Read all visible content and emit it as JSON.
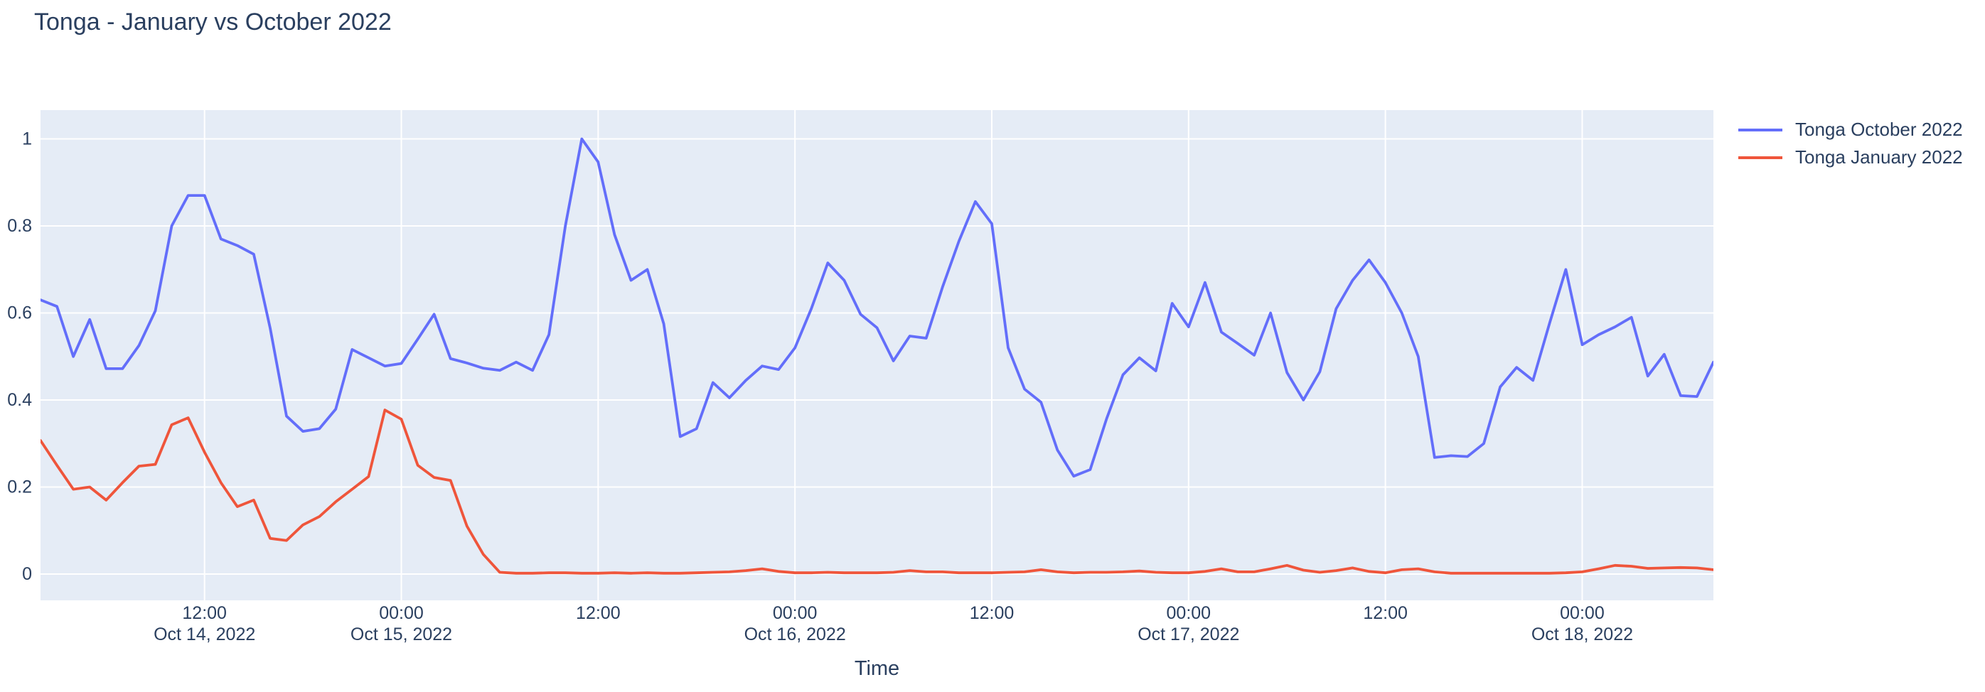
{
  "title": "Tonga - January vs October 2022",
  "colors": {
    "title_text": "#2a3f5f",
    "tick_text": "#2a3f5f",
    "plot_background": "#e5ecf6",
    "grid": "#ffffff",
    "page_background": "#ffffff",
    "series_october": "#636efa",
    "series_january": "#ef553b"
  },
  "chart_data": {
    "type": "line",
    "title": "Tonga - January vs October 2022",
    "xlabel": "Time",
    "ylabel": "",
    "grid": true,
    "legend_position": "right-top-outside",
    "ylim": [
      0,
      1
    ],
    "y_ticks": [
      {
        "value": 0.0,
        "label": "0"
      },
      {
        "value": 0.2,
        "label": "0.2"
      },
      {
        "value": 0.4,
        "label": "0.4"
      },
      {
        "value": 0.6,
        "label": "0.6"
      },
      {
        "value": 0.8,
        "label": "0.8"
      },
      {
        "value": 1.0,
        "label": "1"
      }
    ],
    "x_axis_note": "hourly samples from Oct 14 2022 02:00 to Oct 18 2022 08:00 (t = hours since first point)",
    "x_range_hours": [
      0,
      102
    ],
    "x_ticks": [
      {
        "t": 10,
        "time": "12:00",
        "date": "Oct 14, 2022"
      },
      {
        "t": 22,
        "time": "00:00",
        "date": "Oct 15, 2022"
      },
      {
        "t": 34,
        "time": "12:00",
        "date": ""
      },
      {
        "t": 46,
        "time": "00:00",
        "date": "Oct 16, 2022"
      },
      {
        "t": 58,
        "time": "12:00",
        "date": ""
      },
      {
        "t": 70,
        "time": "00:00",
        "date": "Oct 17, 2022"
      },
      {
        "t": 82,
        "time": "12:00",
        "date": ""
      },
      {
        "t": 94,
        "time": "00:00",
        "date": "Oct 18, 2022"
      }
    ],
    "series": [
      {
        "name": "Tonga October 2022",
        "color": "#636efa",
        "values": [
          0.63,
          0.615,
          0.5,
          0.585,
          0.472,
          0.472,
          0.525,
          0.605,
          0.8,
          0.87,
          0.87,
          0.77,
          0.755,
          0.735,
          0.565,
          0.363,
          0.328,
          0.334,
          0.379,
          0.516,
          0.497,
          0.478,
          0.484,
          0.54,
          0.597,
          0.495,
          0.485,
          0.473,
          0.468,
          0.487,
          0.468,
          0.55,
          0.8,
          1.0,
          0.947,
          0.78,
          0.675,
          0.7,
          0.575,
          0.316,
          0.334,
          0.44,
          0.405,
          0.445,
          0.478,
          0.47,
          0.52,
          0.61,
          0.715,
          0.675,
          0.597,
          0.566,
          0.49,
          0.547,
          0.542,
          0.66,
          0.765,
          0.856,
          0.805,
          0.52,
          0.425,
          0.395,
          0.285,
          0.225,
          0.24,
          0.357,
          0.458,
          0.497,
          0.467,
          0.622,
          0.568,
          0.67,
          0.556,
          0.53,
          0.503,
          0.6,
          0.463,
          0.4,
          0.465,
          0.61,
          0.675,
          0.722,
          0.67,
          0.6,
          0.5,
          0.268,
          0.272,
          0.27,
          0.3,
          0.43,
          0.475,
          0.445,
          0.575,
          0.7,
          0.527,
          0.55,
          0.568,
          0.59,
          0.455,
          0.505,
          0.41,
          0.408,
          0.487
        ]
      },
      {
        "name": "Tonga January 2022",
        "color": "#ef553b",
        "values": [
          0.307,
          0.25,
          0.195,
          0.2,
          0.17,
          0.21,
          0.248,
          0.252,
          0.343,
          0.359,
          0.28,
          0.21,
          0.155,
          0.17,
          0.082,
          0.077,
          0.113,
          0.132,
          0.166,
          0.195,
          0.224,
          0.377,
          0.356,
          0.25,
          0.222,
          0.215,
          0.11,
          0.045,
          0.004,
          0.002,
          0.002,
          0.003,
          0.003,
          0.002,
          0.002,
          0.003,
          0.002,
          0.003,
          0.002,
          0.002,
          0.003,
          0.004,
          0.005,
          0.008,
          0.012,
          0.006,
          0.003,
          0.003,
          0.004,
          0.003,
          0.003,
          0.003,
          0.004,
          0.008,
          0.005,
          0.005,
          0.003,
          0.003,
          0.003,
          0.004,
          0.005,
          0.01,
          0.005,
          0.003,
          0.004,
          0.004,
          0.005,
          0.007,
          0.004,
          0.003,
          0.003,
          0.006,
          0.012,
          0.005,
          0.005,
          0.012,
          0.02,
          0.009,
          0.004,
          0.008,
          0.014,
          0.006,
          0.003,
          0.01,
          0.012,
          0.005,
          0.002,
          0.002,
          0.002,
          0.002,
          0.002,
          0.002,
          0.002,
          0.003,
          0.005,
          0.012,
          0.02,
          0.018,
          0.013,
          0.014,
          0.015,
          0.014,
          0.01
        ]
      }
    ]
  }
}
